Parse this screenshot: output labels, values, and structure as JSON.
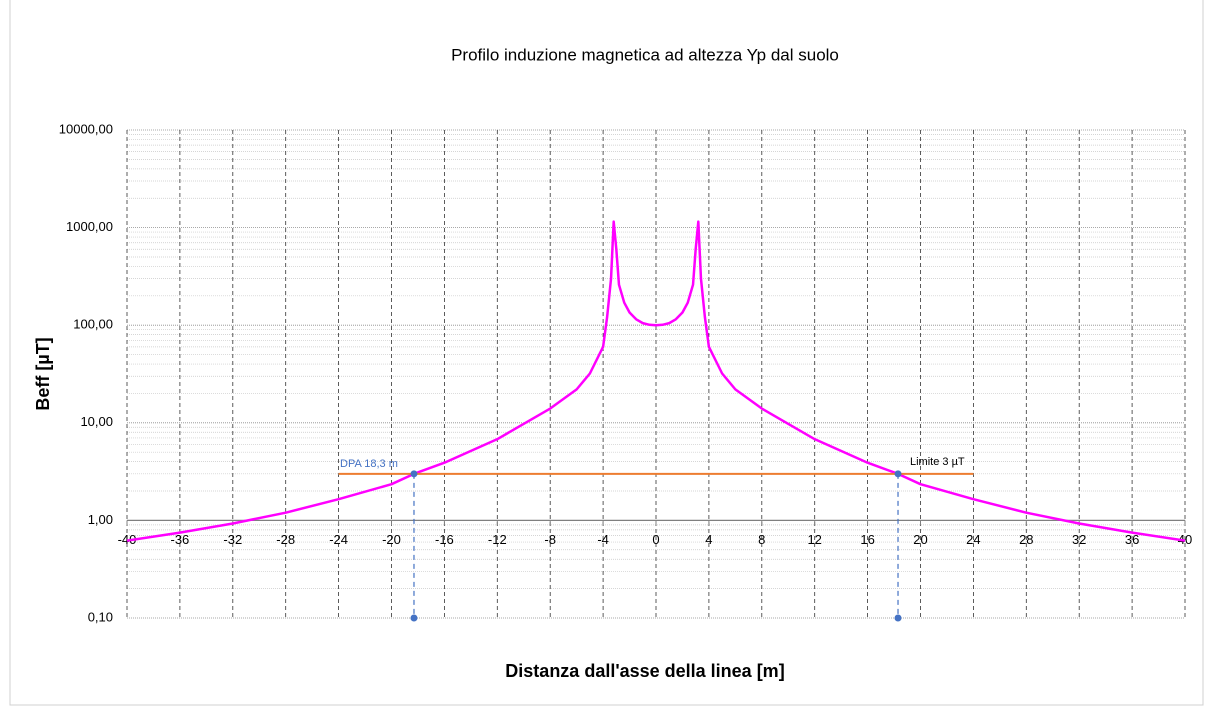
{
  "chart_data": {
    "type": "line",
    "title": "Profilo induzione magnetica ad altezza Yp dal suolo",
    "x_label": "Distanza dall'asse della linea [m]",
    "y_label": "Beff [µT]",
    "log_y": true,
    "grid": true,
    "xlim": [
      -40,
      40
    ],
    "xticks": [
      -40,
      -36,
      -32,
      -28,
      -24,
      -20,
      -16,
      -12,
      -8,
      -4,
      0,
      4,
      8,
      12,
      16,
      20,
      24,
      28,
      32,
      36,
      40
    ],
    "ylim": [
      0.1,
      10000
    ],
    "yticks": [
      {
        "value": 0.1,
        "label": "0,10"
      },
      {
        "value": 1,
        "label": "1,00"
      },
      {
        "value": 10,
        "label": "10,00"
      },
      {
        "value": 100,
        "label": "100,00"
      },
      {
        "value": 1000,
        "label": "1000,00"
      },
      {
        "value": 10000,
        "label": "10000,00"
      }
    ],
    "series": [
      {
        "color": "#ff00ff",
        "x": [
          -40,
          -36,
          -32,
          -28,
          -24,
          -20,
          -18.3,
          -16,
          -12,
          -8,
          -6,
          -5,
          -4,
          -3.7,
          -3.4,
          -3.2,
          -3.0,
          -2.8,
          -2.4,
          -2,
          -1.5,
          -1,
          -0.5,
          0,
          0.5,
          1,
          1.5,
          2,
          2.4,
          2.8,
          3.0,
          3.2,
          3.4,
          3.7,
          4,
          5,
          6,
          8,
          12,
          16,
          18.3,
          20,
          24,
          28,
          32,
          36,
          40
        ],
        "values": [
          0.62,
          0.75,
          0.93,
          1.2,
          1.65,
          2.35,
          3,
          3.9,
          6.8,
          14,
          22,
          32,
          60,
          120,
          300,
          1150,
          600,
          260,
          170,
          135,
          115,
          105,
          101,
          100,
          101,
          105,
          115,
          135,
          170,
          260,
          600,
          1150,
          300,
          120,
          60,
          32,
          22,
          14,
          6.8,
          3.9,
          3,
          2.35,
          1.65,
          1.2,
          0.93,
          0.75,
          0.62
        ],
        "width": 2.5
      },
      {
        "color": "#ed7d31",
        "x": [
          -24,
          24
        ],
        "values": [
          3,
          3
        ],
        "width": 2
      },
      {
        "color": "#4472c4",
        "x": [
          -18.3,
          -18.3
        ],
        "values": [
          3,
          0.1
        ],
        "width": 1.2,
        "dashed": true,
        "markers": true
      },
      {
        "color": "#4472c4",
        "x": [
          18.3,
          18.3
        ],
        "values": [
          3,
          0.1
        ],
        "width": 1.2,
        "dashed": true,
        "markers": true
      }
    ],
    "annotations": [
      {
        "text": "DPA 18,3 m",
        "color": "#4472c4"
      },
      {
        "text": "Limite 3 µT",
        "color": "#000000"
      }
    ]
  }
}
